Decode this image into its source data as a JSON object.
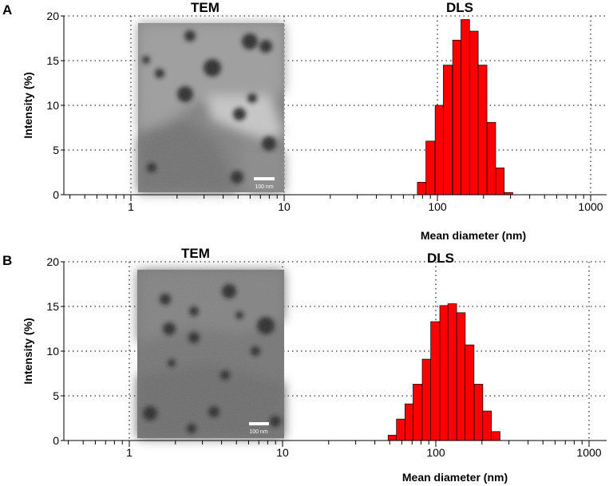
{
  "chart_data": [
    {
      "type": "bar",
      "panel": "A",
      "title": "DLS",
      "inset_title": "TEM",
      "scale_bar_label": "100 nm",
      "xlabel": "Mean diameter (nm)",
      "ylabel": "Intensity (%)",
      "xscale": "log",
      "xlim": [
        0.38,
        1150
      ],
      "ylim": [
        0,
        20
      ],
      "yticks": [
        "0",
        "5",
        "10",
        "15",
        "20"
      ],
      "xticks": [
        "1",
        "10",
        "100",
        "1000"
      ],
      "grid": true,
      "bins": [
        {
          "d": 79,
          "value": 1.4
        },
        {
          "d": 90,
          "value": 6.0
        },
        {
          "d": 103,
          "value": 10.0
        },
        {
          "d": 117,
          "value": 14.5
        },
        {
          "d": 134,
          "value": 17.3
        },
        {
          "d": 152,
          "value": 19.6
        },
        {
          "d": 173,
          "value": 18.3
        },
        {
          "d": 197,
          "value": 14.5
        },
        {
          "d": 225,
          "value": 8.1
        },
        {
          "d": 256,
          "value": 3.0
        },
        {
          "d": 291,
          "value": 0.25
        }
      ]
    },
    {
      "type": "bar",
      "panel": "B",
      "title": "DLS",
      "inset_title": "TEM",
      "scale_bar_label": "100 nm",
      "xlabel": "Mean diameter (nm)",
      "ylabel": "Intensity (%)",
      "xscale": "log",
      "xlim": [
        0.38,
        1150
      ],
      "ylim": [
        0,
        20
      ],
      "yticks": [
        "0",
        "5",
        "10",
        "15",
        "20"
      ],
      "xticks": [
        "1",
        "10",
        "100",
        "1000"
      ],
      "grid": true,
      "bins": [
        {
          "d": 52,
          "value": 0.6
        },
        {
          "d": 59,
          "value": 2.4
        },
        {
          "d": 67,
          "value": 4.1
        },
        {
          "d": 76,
          "value": 6.3
        },
        {
          "d": 87,
          "value": 9.1
        },
        {
          "d": 99,
          "value": 13.3
        },
        {
          "d": 113,
          "value": 15.1
        },
        {
          "d": 128,
          "value": 15.3
        },
        {
          "d": 146,
          "value": 14.3
        },
        {
          "d": 166,
          "value": 10.7
        },
        {
          "d": 190,
          "value": 6.3
        },
        {
          "d": 216,
          "value": 3.3
        },
        {
          "d": 246,
          "value": 1.0
        }
      ]
    }
  ]
}
